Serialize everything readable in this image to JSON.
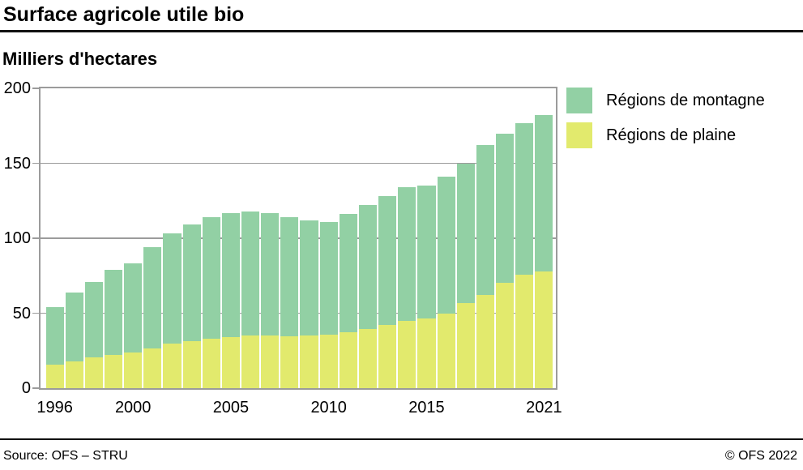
{
  "header": {
    "title": "Surface agricole utile bio",
    "unit": "Milliers d'hectares"
  },
  "legend": {
    "items": [
      {
        "id": "montagne",
        "label": "Régions de montagne",
        "color": "#92D0A4"
      },
      {
        "id": "plaine",
        "label": "Régions de plaine",
        "color": "#E2EA6D"
      }
    ]
  },
  "footer": {
    "source": "Source: OFS – STRU",
    "copyright": "© OFS 2022"
  },
  "chart_data": {
    "type": "bar",
    "stacked": true,
    "title": "Surface agricole utile bio",
    "ylabel": "Milliers d'hectares",
    "xlabel": "",
    "ylim": [
      0,
      200
    ],
    "yticks": [
      0,
      50,
      100,
      150,
      200
    ],
    "xticks": [
      1996,
      2000,
      2005,
      2010,
      2015,
      2021
    ],
    "grid": "horizontal",
    "legend_position": "top-right",
    "axis_color": "#9B9B9B",
    "background": "#FFFFFF",
    "categories": [
      1996,
      1997,
      1998,
      1999,
      2000,
      2001,
      2002,
      2003,
      2004,
      2005,
      2006,
      2007,
      2008,
      2009,
      2010,
      2011,
      2012,
      2013,
      2014,
      2015,
      2016,
      2017,
      2018,
      2019,
      2020,
      2021
    ],
    "series": [
      {
        "id": "plaine",
        "name": "Régions de plaine",
        "color": "#E2EA6D",
        "values": [
          15.5,
          18,
          20.5,
          22,
          24,
          26.5,
          30,
          31.5,
          33,
          34,
          35,
          35,
          34.5,
          35,
          35.5,
          37.5,
          39.5,
          42,
          45,
          46.5,
          50,
          56.5,
          62,
          70.5,
          75.5,
          78
        ]
      },
      {
        "id": "montagne",
        "name": "Régions de montagne",
        "color": "#92D0A4",
        "values": [
          38.5,
          46,
          50.5,
          57,
          59,
          67.5,
          73,
          77.5,
          81,
          83,
          83,
          82,
          79.5,
          77,
          75.5,
          78.5,
          82.5,
          86,
          89,
          88.5,
          91,
          93.5,
          100,
          99.5,
          101.5,
          104
        ]
      }
    ],
    "totals": [
      54,
      64,
      71,
      79,
      83,
      94,
      103,
      109,
      114,
      117,
      118,
      117,
      114,
      112,
      111,
      116,
      122,
      128,
      134,
      135,
      141,
      150,
      162,
      170,
      177,
      182
    ]
  }
}
